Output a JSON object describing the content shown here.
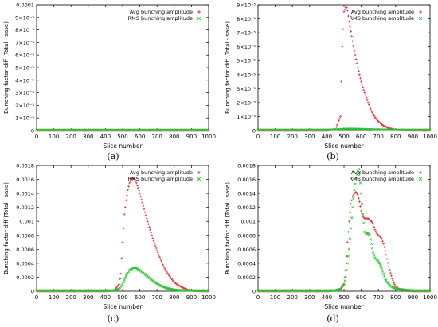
{
  "chart_data": [
    {
      "id": "a",
      "type": "scatter",
      "caption": "(a)",
      "xlabel": "Slice number",
      "ylabel": "Bunching factor diff (Total - sase)",
      "xlim": [
        0,
        1000
      ],
      "ylim": [
        0,
        0.0001
      ],
      "xticks": [
        "0",
        "100",
        "200",
        "300",
        "400",
        "500",
        "600",
        "700",
        "800",
        "900",
        "1000"
      ],
      "yticks": [
        "0",
        "1×10⁻⁵",
        "2×10⁻⁵",
        "3×10⁻⁵",
        "4×10⁻⁵",
        "5×10⁻⁵",
        "6×10⁻⁵",
        "7×10⁻⁵",
        "8×10⁻⁵",
        "9×10⁻⁵",
        "0.0001"
      ],
      "legend_position": "top-right",
      "series": [
        {
          "name": "Avg bunching amplitude",
          "color": "#e8232b",
          "marker": "+",
          "x": [
            0,
            100,
            200,
            300,
            400,
            500,
            600,
            700,
            800,
            900,
            1000
          ],
          "values": [
            0,
            0,
            0,
            0,
            0,
            0,
            0,
            0,
            0,
            0,
            0
          ]
        },
        {
          "name": "RMS bunching amplitude",
          "color": "#22c42a",
          "marker": "x",
          "x": [
            0,
            100,
            200,
            300,
            400,
            500,
            600,
            700,
            800,
            900,
            1000
          ],
          "values": [
            5e-07,
            5e-07,
            5e-07,
            5e-07,
            5e-07,
            5e-07,
            5e-07,
            5e-07,
            5e-07,
            5e-07,
            5e-07
          ]
        }
      ]
    },
    {
      "id": "b",
      "type": "scatter",
      "caption": "(b)",
      "xlabel": "Slice number",
      "ylabel": "Bunching factor diff (Total - sase)",
      "xlim": [
        0,
        1000
      ],
      "ylim": [
        0,
        9e-05
      ],
      "xticks": [
        "0",
        "100",
        "200",
        "300",
        "400",
        "500",
        "600",
        "700",
        "800",
        "900",
        "1000"
      ],
      "yticks": [
        "0",
        "1×10⁻⁵",
        "2×10⁻⁵",
        "3×10⁻⁵",
        "4×10⁻⁵",
        "5×10⁻⁵",
        "6×10⁻⁵",
        "7×10⁻⁵",
        "8×10⁻⁵",
        "9×10⁻⁵"
      ],
      "legend_position": "top-right",
      "series": [
        {
          "name": "Avg bunching amplitude",
          "color": "#e8232b",
          "marker": "+",
          "x": [
            0,
            100,
            200,
            300,
            400,
            450,
            480,
            490,
            500,
            510,
            515,
            520,
            530,
            540,
            550,
            560,
            570,
            580,
            590,
            600,
            620,
            640,
            660,
            680,
            700,
            720,
            740,
            760,
            780,
            800,
            850,
            900,
            1000
          ],
          "values": [
            0,
            0,
            0,
            0,
            0,
            1e-06,
            1e-05,
            6e-05,
            8.5e-05,
            8.8e-05,
            8.8e-05,
            8.6e-05,
            7.8e-05,
            7.1e-05,
            6.4e-05,
            5.7e-05,
            5.1e-05,
            4.5e-05,
            4e-05,
            3.5e-05,
            2.7e-05,
            2e-05,
            1.4e-05,
            9.5e-06,
            6.5e-06,
            4.3e-06,
            2.8e-06,
            1.8e-06,
            1.1e-06,
            6e-07,
            2e-07,
            1e-07,
            0
          ]
        },
        {
          "name": "RMS bunching amplitude",
          "color": "#22c42a",
          "marker": "x",
          "x": [
            0,
            100,
            200,
            300,
            400,
            450,
            500,
            550,
            600,
            650,
            700,
            800,
            900,
            1000
          ],
          "values": [
            5e-07,
            5e-07,
            5e-07,
            5e-07,
            5e-07,
            6e-07,
            1.1e-06,
            1.2e-06,
            1e-06,
            8e-07,
            6e-07,
            5e-07,
            5e-07,
            5e-07
          ]
        }
      ]
    },
    {
      "id": "c",
      "type": "scatter",
      "caption": "(c)",
      "xlabel": "Slice number",
      "ylabel": "Bunching factor diff (Total - sase)",
      "xlim": [
        0,
        1000
      ],
      "ylim": [
        0,
        0.0018
      ],
      "xticks": [
        "0",
        "100",
        "200",
        "300",
        "400",
        "500",
        "600",
        "700",
        "800",
        "900",
        "1000"
      ],
      "yticks": [
        "0",
        "0.0002",
        "0.0004",
        "0.0006",
        "0.0008",
        "0.001",
        "0.0012",
        "0.0014",
        "0.0016",
        "0.0018"
      ],
      "legend_position": "top-right",
      "series": [
        {
          "name": "Avg bunching amplitude",
          "color": "#e8232b",
          "marker": "+",
          "x": [
            0,
            100,
            200,
            300,
            400,
            450,
            480,
            490,
            500,
            510,
            520,
            530,
            540,
            550,
            560,
            570,
            580,
            600,
            620,
            640,
            660,
            680,
            700,
            720,
            740,
            760,
            780,
            800,
            820,
            850,
            880,
            900,
            950,
            1000
          ],
          "values": [
            0,
            0,
            0,
            0,
            0,
            1e-05,
            0.0001,
            0.00025,
            0.0007,
            0.0011,
            0.0013,
            0.00145,
            0.00155,
            0.0016,
            0.00162,
            0.0016,
            0.00155,
            0.0014,
            0.00122,
            0.00104,
            0.00088,
            0.00072,
            0.00058,
            0.00046,
            0.00035,
            0.00026,
            0.00019,
            0.00013,
            9e-05,
            5e-05,
            2e-05,
            1e-05,
            0,
            0
          ]
        },
        {
          "name": "RMS bunching amplitude",
          "color": "#22c42a",
          "marker": "x",
          "x": [
            0,
            100,
            200,
            300,
            400,
            450,
            480,
            500,
            520,
            540,
            560,
            570,
            580,
            600,
            620,
            640,
            660,
            680,
            700,
            720,
            740,
            760,
            780,
            800,
            850,
            900,
            950,
            1000
          ],
          "values": [
            1e-05,
            1e-05,
            1e-05,
            1e-05,
            1e-05,
            1e-05,
            3e-05,
            0.0001,
            0.00022,
            0.0003,
            0.00033,
            0.00034,
            0.00033,
            0.0003,
            0.00026,
            0.00022,
            0.00018,
            0.00014,
            0.00011,
            8e-05,
            6e-05,
            4e-05,
            3e-05,
            2e-05,
            1e-05,
            1e-05,
            1e-05,
            1e-05
          ]
        }
      ]
    },
    {
      "id": "d",
      "type": "scatter",
      "caption": "(d)",
      "xlabel": "Slice number",
      "ylabel": "Bunching factor diff (Total - sase)",
      "xlim": [
        0,
        1000
      ],
      "ylim": [
        0,
        0.0018
      ],
      "xticks": [
        "0",
        "100",
        "200",
        "300",
        "400",
        "500",
        "600",
        "700",
        "800",
        "900",
        "1000"
      ],
      "yticks": [
        "0",
        "0.0002",
        "0.0004",
        "0.0006",
        "0.0008",
        "0.001",
        "0.0012",
        "0.0014",
        "0.0016",
        "0.0018"
      ],
      "legend_position": "top-right",
      "series": [
        {
          "name": "Avg bunching amplitude",
          "color": "#e8232b",
          "marker": "+",
          "x": [
            0,
            100,
            200,
            300,
            400,
            450,
            480,
            500,
            510,
            520,
            530,
            540,
            550,
            560,
            570,
            580,
            590,
            600,
            610,
            620,
            630,
            640,
            650,
            660,
            670,
            680,
            690,
            700,
            710,
            720,
            730,
            740,
            750,
            760,
            770,
            780,
            790,
            800,
            820,
            850,
            900,
            950,
            1000
          ],
          "values": [
            0,
            0,
            0,
            0,
            0,
            1e-05,
            3e-05,
            0.0001,
            0.0003,
            0.0007,
            0.001,
            0.00125,
            0.00135,
            0.0014,
            0.00142,
            0.00138,
            0.00128,
            0.00115,
            0.00107,
            0.00104,
            0.00104,
            0.00104,
            0.00102,
            0.001,
            0.00096,
            0.00088,
            0.00083,
            0.0008,
            0.00078,
            0.00075,
            0.00068,
            0.00058,
            0.00046,
            0.00035,
            0.00026,
            0.00018,
            0.00012,
            7e-05,
            3e-05,
            1e-05,
            0,
            0,
            0
          ]
        },
        {
          "name": "RMS bunching amplitude",
          "color": "#22c42a",
          "marker": "x",
          "x": [
            0,
            100,
            200,
            300,
            400,
            450,
            480,
            500,
            510,
            520,
            530,
            540,
            550,
            560,
            570,
            580,
            585,
            590,
            600,
            610,
            620,
            630,
            640,
            650,
            660,
            670,
            680,
            690,
            700,
            710,
            720,
            730,
            740,
            750,
            760,
            770,
            780,
            790,
            800,
            820,
            850,
            900,
            950,
            1000
          ],
          "values": [
            1e-05,
            1e-05,
            1e-05,
            1e-05,
            1e-05,
            1e-05,
            3e-05,
            0.0001,
            0.0002,
            0.0004,
            0.0006,
            0.0009,
            0.0012,
            0.00145,
            0.00162,
            0.00172,
            0.00175,
            0.0017,
            0.0014,
            0.0011,
            0.00085,
            0.00082,
            0.00083,
            0.0008,
            0.00068,
            0.00055,
            0.00048,
            0.00045,
            0.00043,
            0.00038,
            0.00032,
            0.00025,
            0.00018,
            0.00013,
            0.0001,
            8e-05,
            6e-05,
            5e-05,
            4e-05,
            3e-05,
            2e-05,
            1e-05,
            1e-05,
            1e-05
          ]
        }
      ]
    }
  ]
}
